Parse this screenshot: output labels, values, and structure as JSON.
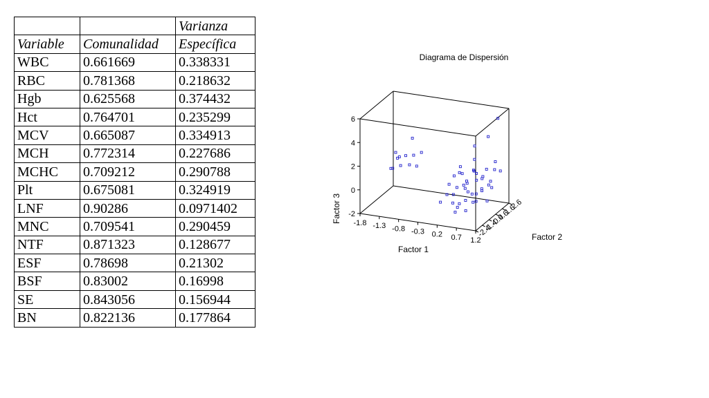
{
  "table": {
    "header_row1": [
      "",
      "",
      "Varianza"
    ],
    "header_row2": [
      "Variable",
      "Comunalidad",
      "Específica"
    ],
    "rows": [
      [
        "WBC",
        "0.661669",
        "0.338331"
      ],
      [
        "RBC",
        "0.781368",
        "0.218632"
      ],
      [
        "Hgb",
        "0.625568",
        "0.374432"
      ],
      [
        "Hct",
        "0.764701",
        "0.235299"
      ],
      [
        "MCV",
        "0.665087",
        "0.334913"
      ],
      [
        "MCH",
        "0.772314",
        "0.227686"
      ],
      [
        "MCHC",
        "0.709212",
        "0.290788"
      ],
      [
        "Plt",
        "0.675081",
        "0.324919"
      ],
      [
        "LNF",
        "0.90286",
        "0.0971402"
      ],
      [
        "MNC",
        "0.709541",
        "0.290459"
      ],
      [
        "NTF",
        "0.871323",
        "0.128677"
      ],
      [
        "ESF",
        "0.78698",
        "0.21302"
      ],
      [
        "BSF",
        "0.83002",
        "0.16998"
      ],
      [
        "SE",
        "0.843056",
        "0.156944"
      ],
      [
        "BN",
        "0.822136",
        "0.177864"
      ]
    ]
  },
  "chart_data": {
    "type": "scatter",
    "title": "Diagrama de Dispersión",
    "xlabel": "Factor 1",
    "ylabel": "Factor 2",
    "zlabel": "Factor 3",
    "x_ticks": [
      "-1.8",
      "-1.3",
      "-0.8",
      "-0.3",
      "0.2",
      "0.7",
      "1.2"
    ],
    "y_ticks": [
      "-2.4",
      "-1.4",
      "-0.4",
      "0.6",
      "1.6",
      "2.6"
    ],
    "z_ticks": [
      "-2",
      "0",
      "2",
      "4",
      "6"
    ],
    "xlim": [
      -1.8,
      1.2
    ],
    "ylim": [
      -2.4,
      2.6
    ],
    "zlim": [
      -2,
      6
    ],
    "marker": "open-square",
    "color": "#2222cc",
    "points": [
      [
        -1.5,
        1.5,
        1.0
      ],
      [
        -1.4,
        1.2,
        1.3
      ],
      [
        -1.6,
        1.8,
        1.3
      ],
      [
        -1.3,
        0.8,
        0.8
      ],
      [
        -1.5,
        0.5,
        0.6
      ],
      [
        -1.2,
        1.0,
        1.6
      ],
      [
        -1.1,
        1.6,
        1.4
      ],
      [
        -1.0,
        0.4,
        1.2
      ],
      [
        -1.2,
        2.0,
        2.6
      ],
      [
        -1.0,
        2.2,
        1.4
      ],
      [
        -0.9,
        0.9,
        0.9
      ],
      [
        -1.4,
        0.2,
        0.8
      ],
      [
        0.3,
        -1.5,
        0.2
      ],
      [
        0.4,
        -1.2,
        -0.6
      ],
      [
        0.5,
        -0.8,
        -0.8
      ],
      [
        0.2,
        -1.9,
        -0.3
      ],
      [
        0.6,
        -0.5,
        0.4
      ],
      [
        0.7,
        -1.0,
        -1.2
      ],
      [
        0.4,
        -0.2,
        1.5
      ],
      [
        0.8,
        -1.6,
        0.0
      ],
      [
        0.5,
        0.3,
        0.6
      ],
      [
        0.9,
        -0.6,
        -0.5
      ],
      [
        0.6,
        -2.0,
        -0.9
      ],
      [
        1.0,
        -0.3,
        0.3
      ],
      [
        0.7,
        0.6,
        1.2
      ],
      [
        0.8,
        0.0,
        -0.2
      ],
      [
        1.0,
        1.0,
        0.5
      ],
      [
        0.9,
        0.3,
        1.0
      ],
      [
        1.1,
        -0.1,
        -0.6
      ],
      [
        0.3,
        0.8,
        0.9
      ],
      [
        0.6,
        1.2,
        0.3
      ],
      [
        0.5,
        1.5,
        3.0
      ],
      [
        0.8,
        1.8,
        3.8
      ],
      [
        1.0,
        1.6,
        1.2
      ],
      [
        0.4,
        2.0,
        0.6
      ],
      [
        0.9,
        2.3,
        1.5
      ],
      [
        1.1,
        0.6,
        0.2
      ],
      [
        0.7,
        -1.3,
        1.1
      ],
      [
        0.2,
        -0.6,
        0.6
      ],
      [
        1.1,
        -0.9,
        0.8
      ],
      [
        0.6,
        0.9,
        2.2
      ],
      [
        0.4,
        -1.0,
        1.6
      ],
      [
        1.0,
        2.1,
        5.3
      ],
      [
        0.8,
        -0.4,
        2.0
      ],
      [
        0.3,
        0.0,
        0.1
      ],
      [
        0.5,
        -1.7,
        0.4
      ],
      [
        0.9,
        1.3,
        0.0
      ],
      [
        0.7,
        0.1,
        -1.0
      ],
      [
        1.1,
        1.9,
        1.0
      ],
      [
        0.2,
        1.1,
        1.3
      ],
      [
        0.6,
        -0.2,
        0.7
      ],
      [
        0.9,
        -1.2,
        0.4
      ],
      [
        1.0,
        0.4,
        1.8
      ],
      [
        0.5,
        0.5,
        -0.4
      ],
      [
        0.8,
        1.0,
        0.8
      ],
      [
        0.4,
        -0.5,
        -1.3
      ]
    ]
  }
}
